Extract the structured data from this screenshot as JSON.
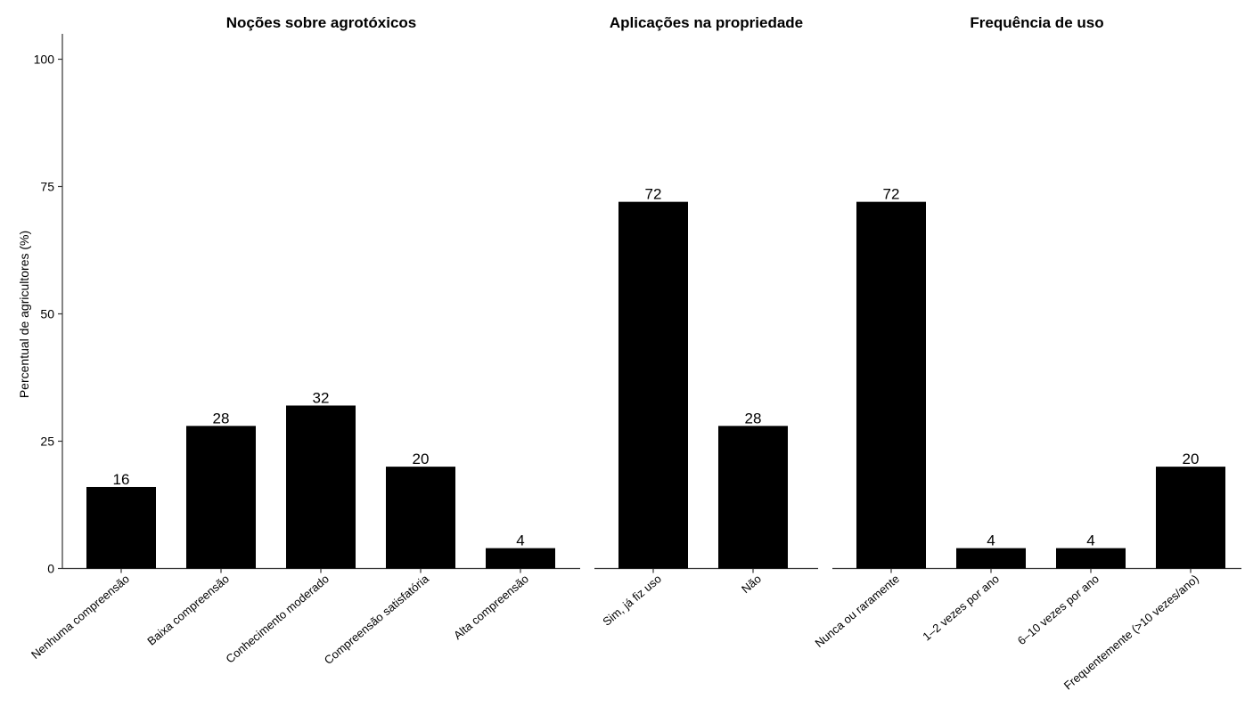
{
  "chart_data": {
    "type": "bar",
    "ylabel": "Percentual de agricultores (%)",
    "ylim": [
      0,
      105
    ],
    "yticks": [
      0,
      25,
      50,
      75,
      100
    ],
    "grid": false,
    "bar_color": "#000000",
    "facets": [
      {
        "title": "Noções sobre agrotóxicos",
        "categories": [
          "Nenhuma compreensão",
          "Baixa compreensão",
          "Conhecimento moderado",
          "Compreensão satisfatória",
          "Alta compreensão"
        ],
        "values": [
          16,
          28,
          32,
          20,
          4
        ]
      },
      {
        "title": "Aplicações na propriedade",
        "categories": [
          "Sim, já fiz uso",
          "Não"
        ],
        "values": [
          72,
          28
        ]
      },
      {
        "title": "Frequência de uso",
        "categories": [
          "Nunca ou raramente",
          "1–2 vezes por ano",
          "6–10 vezes por ano",
          "Frequentemente (>10 vezes/ano)"
        ],
        "values": [
          72,
          4,
          4,
          20
        ]
      }
    ]
  }
}
